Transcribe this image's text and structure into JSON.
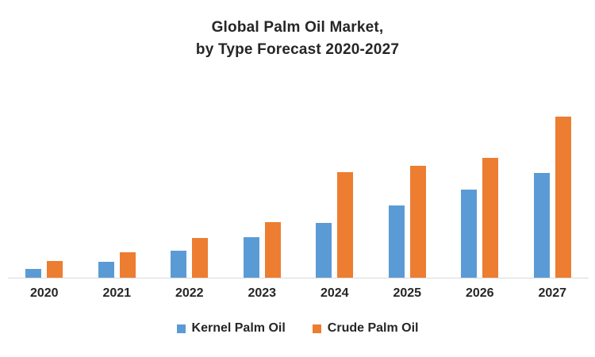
{
  "chart_data": {
    "type": "bar",
    "title": "Global Palm Oil Market, by Type Forecast 2020-2027",
    "title_lines": [
      "Global Palm Oil Market,",
      "by Type Forecast 2020-2027"
    ],
    "categories": [
      "2020",
      "2021",
      "2022",
      "2023",
      "2024",
      "2025",
      "2026",
      "2027"
    ],
    "series": [
      {
        "name": "Kernel Palm Oil",
        "color": "#5B9BD5",
        "values": [
          11,
          20,
          34,
          51,
          69,
          91,
          111,
          132
        ]
      },
      {
        "name": "Crude Palm Oil",
        "color": "#ED7D31",
        "values": [
          21,
          32,
          50,
          70,
          133,
          141,
          151,
          203
        ]
      }
    ],
    "xlabel": "",
    "ylabel": "",
    "ylim": [
      0,
      240
    ],
    "value_axis_visible": false,
    "value_note": "No value axis or data labels shown; values are estimated relative bar heights in arbitrary units",
    "grid": false,
    "legend_position": "bottom",
    "colors": {
      "background": "#FFFFFF",
      "axis_line": "#D9D9D9",
      "text": "#262626",
      "kernel_palm_oil": "#5B9BD5",
      "crude_palm_oil": "#ED7D31"
    }
  }
}
